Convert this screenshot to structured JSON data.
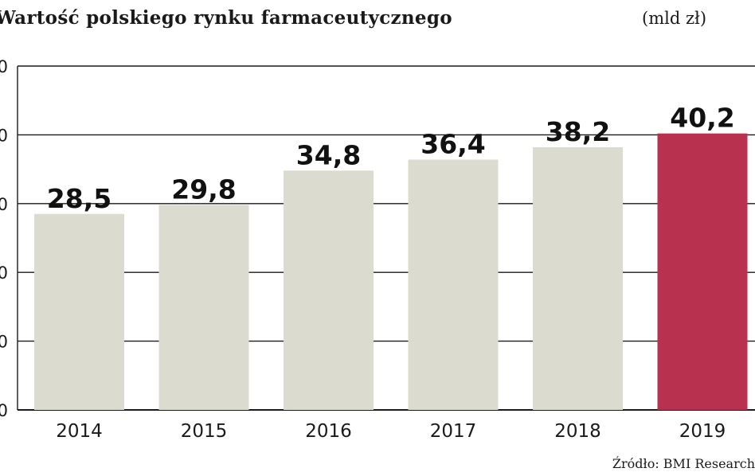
{
  "chart_data": {
    "type": "bar",
    "title": "Wartość polskiego rynku farmaceutycznego",
    "unit": "(mld zł)",
    "categories": [
      "2014",
      "2015",
      "2016",
      "2017",
      "2018",
      "2019"
    ],
    "values": [
      28.5,
      29.8,
      34.8,
      36.4,
      38.2,
      40.2
    ],
    "value_labels": [
      "28,5",
      "29,8",
      "34,8",
      "36,4",
      "38,2",
      "40,2"
    ],
    "yticks_visible": [
      "0",
      "0",
      "0",
      "0",
      "0",
      "0"
    ],
    "ylim": [
      0,
      50
    ],
    "grid": true,
    "source": "Źródło: BMI Research",
    "colors": {
      "bar": "#dcdbd0",
      "highlight": "#b8324f",
      "grid": "#1a1a1a"
    },
    "highlight_index": 5
  }
}
